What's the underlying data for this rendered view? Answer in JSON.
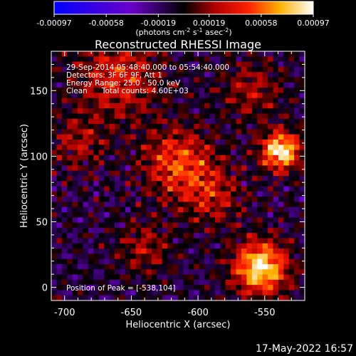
{
  "chart_data": {
    "type": "heatmap",
    "title": "Reconstructed RHESSI Image",
    "xlabel": "Heliocentric X (arcsec)",
    "ylabel": "Heliocentric Y (arcsec)",
    "xlim": [
      -710,
      -520
    ],
    "ylim": [
      -10,
      180
    ],
    "x_ticks": [
      -700,
      -650,
      -600,
      -550
    ],
    "y_ticks": [
      0,
      50,
      100,
      150
    ],
    "colorbar": {
      "range": [
        -0.00097,
        0.00097
      ],
      "ticks": [
        "-0.00097",
        "-0.00058",
        "-0.00019",
        "0.00019",
        "0.00058",
        "0.00097"
      ],
      "unit_parts": [
        "(photons cm",
        "-2",
        " s",
        "-1",
        " asec",
        "-2",
        ")"
      ]
    },
    "info_lines": [
      "29-Sep-2014 05:48:40.000 to 05:54:40.000",
      "Detectors: 3F 6F 9F, Att 1",
      "Energy Range: 25.0 - 50.0 keV",
      "Clean      Total counts: 4.60E+03"
    ],
    "peak_label": "Position of Peak = [-538,104]",
    "sources": [
      {
        "x": -538,
        "y": 104,
        "amp": 1.0,
        "sigma": 10
      },
      {
        "x": -553,
        "y": 15,
        "amp": 0.95,
        "sigma": 14
      },
      {
        "x": -615,
        "y": 95,
        "amp": 0.55,
        "sigma": 18
      },
      {
        "x": -660,
        "y": 160,
        "amp": 0.45,
        "sigma": 22
      },
      {
        "x": -590,
        "y": 70,
        "amp": 0.35,
        "sigma": 16
      },
      {
        "x": -690,
        "y": 110,
        "amp": 0.3,
        "sigma": 14
      },
      {
        "x": -640,
        "y": 30,
        "amp": 0.3,
        "sigma": 14
      },
      {
        "x": -560,
        "y": 150,
        "amp": 0.3,
        "sigma": 16
      }
    ]
  },
  "footer": {
    "date": "17-May-2022 16:57"
  }
}
